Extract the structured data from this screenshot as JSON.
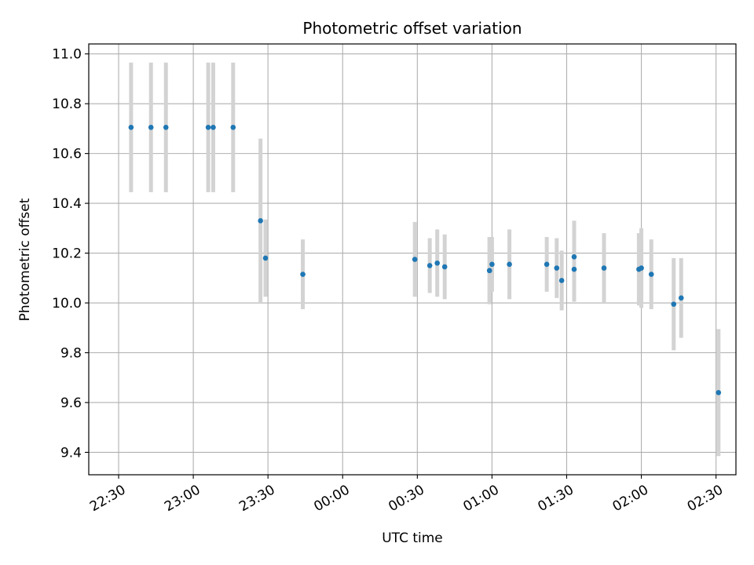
{
  "chart_data": {
    "type": "scatter",
    "title": "Photometric offset variation",
    "xlabel": "UTC time",
    "ylabel": "Photometric offset",
    "xlim": [
      "22:18",
      "02:38"
    ],
    "ylim": [
      9.31,
      11.04
    ],
    "x_ticks": [
      "22:30",
      "23:00",
      "23:30",
      "00:00",
      "00:30",
      "01:00",
      "01:30",
      "02:00",
      "02:30"
    ],
    "y_ticks": [
      "9.4",
      "9.6",
      "9.8",
      "10.0",
      "10.2",
      "10.4",
      "10.6",
      "10.8",
      "11.0"
    ],
    "grid": true,
    "marker_color": "#1f77b4",
    "errorbar_color": "#d3d3d3",
    "points": [
      {
        "time": "22:35",
        "y": 10.705,
        "err": 0.26
      },
      {
        "time": "22:43",
        "y": 10.705,
        "err": 0.26
      },
      {
        "time": "22:49",
        "y": 10.705,
        "err": 0.26
      },
      {
        "time": "23:06",
        "y": 10.705,
        "err": 0.26
      },
      {
        "time": "23:08",
        "y": 10.705,
        "err": 0.26
      },
      {
        "time": "23:16",
        "y": 10.705,
        "err": 0.26
      },
      {
        "time": "23:27",
        "y": 10.33,
        "err": 0.33
      },
      {
        "time": "23:29",
        "y": 10.18,
        "err": 0.155
      },
      {
        "time": "23:44",
        "y": 10.115,
        "err": 0.14
      },
      {
        "time": "00:29",
        "y": 10.175,
        "err": 0.15
      },
      {
        "time": "00:35",
        "y": 10.15,
        "err": 0.11
      },
      {
        "time": "00:38",
        "y": 10.16,
        "err": 0.135
      },
      {
        "time": "00:41",
        "y": 10.145,
        "err": 0.13
      },
      {
        "time": "00:59",
        "y": 10.13,
        "err": 0.135
      },
      {
        "time": "00:59",
        "y": 10.13,
        "err": 0.135
      },
      {
        "time": "01:00",
        "y": 10.155,
        "err": 0.11
      },
      {
        "time": "01:07",
        "y": 10.155,
        "err": 0.14
      },
      {
        "time": "01:22",
        "y": 10.155,
        "err": 0.11
      },
      {
        "time": "01:26",
        "y": 10.14,
        "err": 0.12
      },
      {
        "time": "01:28",
        "y": 10.09,
        "err": 0.12
      },
      {
        "time": "01:33",
        "y": 10.185,
        "err": 0.145
      },
      {
        "time": "01:33",
        "y": 10.135,
        "err": 0.13
      },
      {
        "time": "01:45",
        "y": 10.14,
        "err": 0.14
      },
      {
        "time": "01:59",
        "y": 10.135,
        "err": 0.145
      },
      {
        "time": "02:00",
        "y": 10.14,
        "err": 0.16
      },
      {
        "time": "02:04",
        "y": 10.115,
        "err": 0.14
      },
      {
        "time": "02:13",
        "y": 9.995,
        "err": 0.185
      },
      {
        "time": "02:16",
        "y": 10.02,
        "err": 0.16
      },
      {
        "time": "02:31",
        "y": 9.64,
        "err": 0.255
      }
    ]
  }
}
